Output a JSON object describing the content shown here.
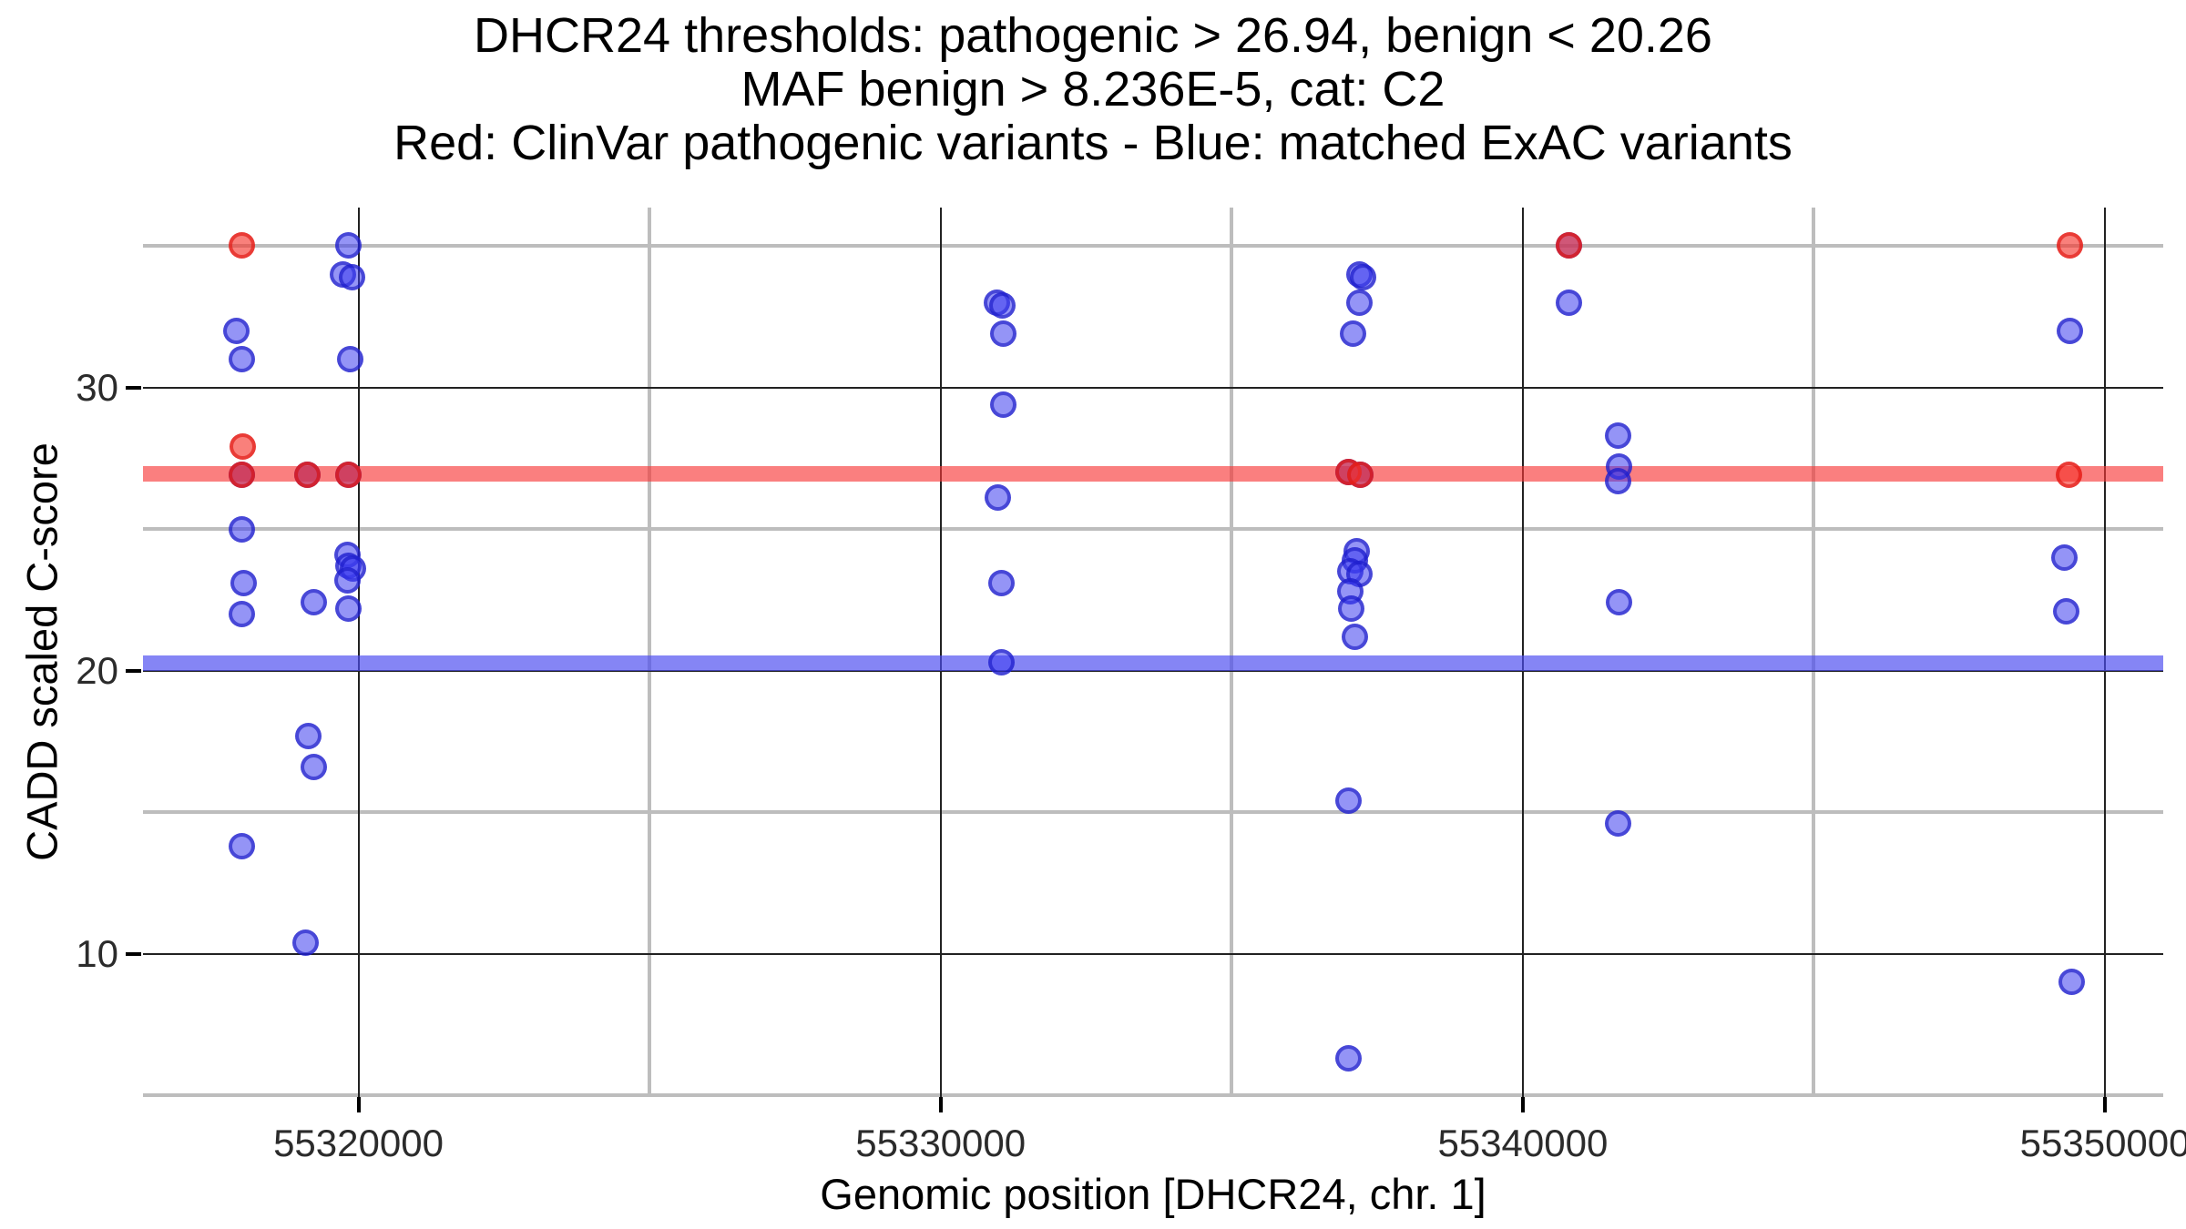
{
  "title": {
    "line1": "DHCR24 thresholds: pathogenic > 26.94, benign < 20.26",
    "line2": "MAF benign > 8.236E-5, cat: C2",
    "line3": "Red: ClinVar pathogenic variants - Blue: matched ExAC variants"
  },
  "axes": {
    "x": {
      "label": "Genomic position [DHCR24, chr. 1]",
      "range": [
        55316300,
        55351000
      ],
      "major_ticks": [
        55320000,
        55330000,
        55340000,
        55350000
      ],
      "tick_labels": [
        "55320000",
        "55330000",
        "55340000",
        "55350000"
      ],
      "minor_gridlines": [
        55325000,
        55335000,
        55345000
      ]
    },
    "y": {
      "label": "CADD scaled C-score",
      "range": [
        4.94,
        36.35
      ],
      "major_ticks": [
        30,
        20,
        10
      ],
      "tick_labels": [
        "30",
        "20",
        "10"
      ],
      "minor_gridlines": [
        35,
        25,
        15,
        5
      ]
    }
  },
  "colors": {
    "red_point": "#FA6A60",
    "blue_point": "#7B7BF0",
    "red_band": "#F97777",
    "blue_band": "#8484F5",
    "grid_minor": "#BDBDBD",
    "grid_major": "#222222",
    "background": "#FFFFFF"
  },
  "chart_data": {
    "type": "scatter",
    "title": "DHCR24 thresholds: pathogenic > 26.94, benign < 20.26 | MAF benign > 8.236E-5, cat: C2",
    "xlabel": "Genomic position [DHCR24, chr. 1]",
    "ylabel": "CADD scaled C-score",
    "xlim": [
      55316300,
      55351000
    ],
    "ylim": [
      4.94,
      36.35
    ],
    "grid": true,
    "legend_position": "none",
    "thresholds": [
      {
        "name": "pathogenic threshold",
        "value": 26.94,
        "color": "red"
      },
      {
        "name": "benign threshold",
        "value": 20.26,
        "color": "blue"
      }
    ],
    "series": [
      {
        "name": "ClinVar pathogenic variants",
        "color": "red",
        "points": [
          [
            55318000,
            35.0
          ],
          [
            55318010,
            27.9
          ],
          [
            55318000,
            26.9
          ],
          [
            55319130,
            26.9
          ],
          [
            55319830,
            26.9
          ],
          [
            55337010,
            27.0
          ],
          [
            55337210,
            26.9
          ],
          [
            55340790,
            35.0
          ],
          [
            55349400,
            35.0
          ],
          [
            55349380,
            26.9
          ]
        ]
      },
      {
        "name": "matched ExAC variants",
        "color": "blue",
        "points": [
          [
            55317910,
            32.0
          ],
          [
            55318000,
            31.0
          ],
          [
            55318000,
            26.9
          ],
          [
            55318000,
            25.0
          ],
          [
            55318030,
            23.1
          ],
          [
            55318000,
            22.0
          ],
          [
            55318000,
            13.8
          ],
          [
            55319130,
            26.9
          ],
          [
            55319140,
            17.7
          ],
          [
            55319100,
            10.4
          ],
          [
            55319230,
            22.4
          ],
          [
            55319230,
            16.6
          ],
          [
            55319830,
            35.0
          ],
          [
            55319740,
            34.0
          ],
          [
            55319890,
            33.9
          ],
          [
            55319860,
            31.0
          ],
          [
            55319830,
            26.9
          ],
          [
            55319810,
            24.1
          ],
          [
            55319830,
            23.7
          ],
          [
            55319900,
            23.6
          ],
          [
            55319810,
            23.2
          ],
          [
            55319830,
            22.2
          ],
          [
            55330970,
            33.0
          ],
          [
            55331060,
            32.9
          ],
          [
            55331070,
            31.9
          ],
          [
            55331080,
            29.4
          ],
          [
            55330990,
            26.1
          ],
          [
            55331040,
            23.1
          ],
          [
            55331040,
            20.3
          ],
          [
            55337190,
            34.0
          ],
          [
            55337250,
            33.9
          ],
          [
            55337200,
            33.0
          ],
          [
            55337080,
            31.9
          ],
          [
            55337010,
            27.0
          ],
          [
            55337210,
            26.9
          ],
          [
            55337140,
            24.2
          ],
          [
            55337120,
            23.9
          ],
          [
            55337030,
            23.5
          ],
          [
            55337190,
            23.4
          ],
          [
            55337030,
            22.8
          ],
          [
            55337060,
            22.2
          ],
          [
            55337120,
            21.2
          ],
          [
            55337000,
            15.4
          ],
          [
            55337000,
            6.3
          ],
          [
            55340790,
            35.0
          ],
          [
            55340790,
            33.0
          ],
          [
            55341640,
            28.3
          ],
          [
            55341650,
            27.2
          ],
          [
            55341630,
            26.7
          ],
          [
            55341660,
            22.4
          ],
          [
            55341640,
            14.6
          ],
          [
            55349390,
            32.0
          ],
          [
            55349310,
            24.0
          ],
          [
            55349340,
            22.1
          ],
          [
            55349430,
            9.0
          ]
        ]
      }
    ]
  }
}
